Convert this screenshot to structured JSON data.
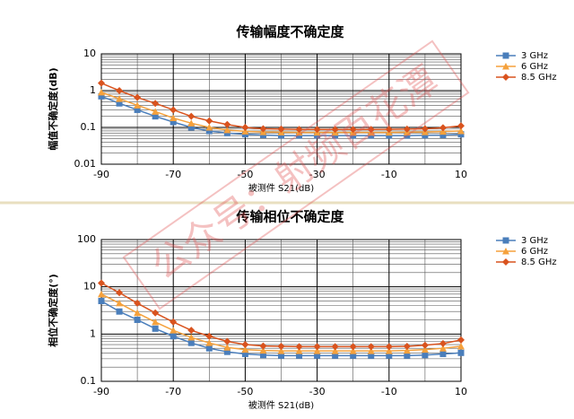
{
  "chart_data": [
    {
      "type": "line",
      "title": "传输幅度不确定度",
      "x_label": "被测件 S21(dB)",
      "y_label": "幅值不确定度(dB)",
      "log_y": true,
      "grid": true,
      "legend": "right",
      "x": [
        -90,
        -85,
        -80,
        -75,
        -70,
        -65,
        -60,
        -55,
        -50,
        -45,
        -40,
        -35,
        -30,
        -25,
        -20,
        -15,
        -10,
        -5,
        0,
        5,
        10
      ],
      "xlim": [
        -90,
        10
      ],
      "xticks": [
        -90,
        -70,
        -50,
        -30,
        -10,
        10
      ],
      "ylim": [
        0.01,
        10
      ],
      "yticks": [
        0.01,
        0.1,
        1,
        10
      ],
      "series": [
        {
          "name": "3 GHz",
          "color": "#4a7ebb",
          "values": [
            0.7,
            0.45,
            0.3,
            0.2,
            0.14,
            0.1,
            0.08,
            0.07,
            0.065,
            0.062,
            0.06,
            0.06,
            0.06,
            0.06,
            0.06,
            0.06,
            0.06,
            0.06,
            0.061,
            0.062,
            0.065
          ]
        },
        {
          "name": "6 GHz",
          "color": "#f5a13c",
          "values": [
            0.9,
            0.6,
            0.4,
            0.27,
            0.18,
            0.13,
            0.1,
            0.085,
            0.078,
            0.075,
            0.074,
            0.073,
            0.073,
            0.073,
            0.073,
            0.073,
            0.073,
            0.074,
            0.075,
            0.077,
            0.08
          ]
        },
        {
          "name": "8.5 GHz",
          "color": "#d9531e",
          "values": [
            1.6,
            1.0,
            0.65,
            0.45,
            0.3,
            0.2,
            0.15,
            0.12,
            0.1,
            0.092,
            0.09,
            0.088,
            0.088,
            0.088,
            0.088,
            0.088,
            0.089,
            0.09,
            0.092,
            0.098,
            0.11
          ]
        }
      ]
    },
    {
      "type": "line",
      "title": "传输相位不确定度",
      "x_label": "被测件 S21(dB)",
      "y_label": "相位不确定度(°)",
      "log_y": true,
      "grid": true,
      "legend": "right",
      "x": [
        -90,
        -85,
        -80,
        -75,
        -70,
        -65,
        -60,
        -55,
        -50,
        -45,
        -40,
        -35,
        -30,
        -25,
        -20,
        -15,
        -10,
        -5,
        0,
        5,
        10
      ],
      "xlim": [
        -90,
        10
      ],
      "xticks": [
        -90,
        -70,
        -50,
        -30,
        -10,
        10
      ],
      "ylim": [
        0.1,
        100
      ],
      "yticks": [
        0.1,
        1,
        10,
        100
      ],
      "series": [
        {
          "name": "3 GHz",
          "color": "#4a7ebb",
          "values": [
            5,
            3,
            2,
            1.3,
            0.9,
            0.65,
            0.5,
            0.42,
            0.38,
            0.36,
            0.35,
            0.35,
            0.35,
            0.35,
            0.35,
            0.35,
            0.35,
            0.35,
            0.36,
            0.38,
            0.4
          ]
        },
        {
          "name": "6 GHz",
          "color": "#f5a13c",
          "values": [
            7,
            4.5,
            2.8,
            1.8,
            1.2,
            0.85,
            0.65,
            0.52,
            0.47,
            0.45,
            0.44,
            0.44,
            0.44,
            0.44,
            0.44,
            0.44,
            0.44,
            0.45,
            0.47,
            0.5,
            0.55
          ]
        },
        {
          "name": "8.5 GHz",
          "color": "#d9531e",
          "values": [
            12,
            7.5,
            4.5,
            2.8,
            1.8,
            1.2,
            0.9,
            0.7,
            0.6,
            0.56,
            0.55,
            0.54,
            0.54,
            0.54,
            0.54,
            0.54,
            0.54,
            0.55,
            0.58,
            0.63,
            0.75
          ]
        }
      ]
    }
  ],
  "watermark": "公众号：射频百花潭"
}
